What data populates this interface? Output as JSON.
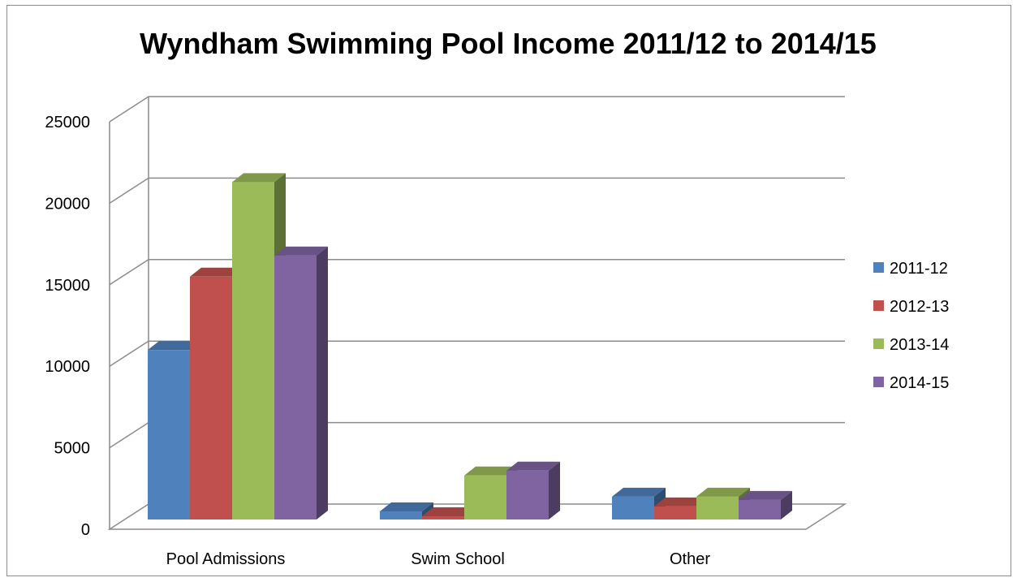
{
  "chart_data": {
    "type": "bar",
    "style": "3d-clustered-column",
    "title": "Wyndham Swimming Pool Income 2011/12 to 2014/15",
    "xlabel": "",
    "ylabel": "",
    "categories": [
      "Pool Admissions",
      "Swim School",
      "Other"
    ],
    "y_ticks": [
      "0",
      "5000",
      "10000",
      "15000",
      "20000",
      "25000"
    ],
    "ylim": [
      0,
      25000
    ],
    "grid": true,
    "legend_position": "right",
    "series": [
      {
        "name": "2011-12",
        "color": "#4f81bd",
        "values": [
          10500,
          600,
          1500
        ]
      },
      {
        "name": "2012-13",
        "color": "#c0504d",
        "values": [
          15000,
          300,
          900
        ]
      },
      {
        "name": "2013-14",
        "color": "#9bbb59",
        "values": [
          20800,
          2800,
          1500
        ]
      },
      {
        "name": "2014-15",
        "color": "#8064a2",
        "values": [
          16300,
          3100,
          1300
        ]
      }
    ]
  }
}
